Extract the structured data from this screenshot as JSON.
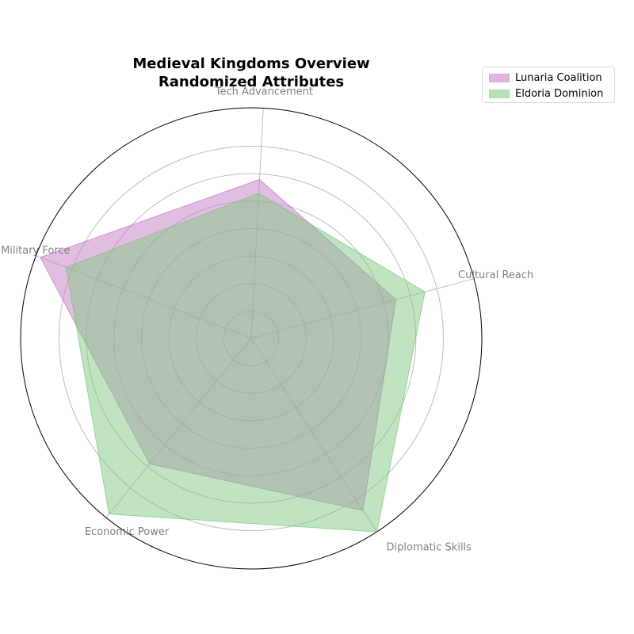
{
  "chart_data": {
    "type": "radar",
    "title_line1": "Medieval Kingdoms Overview",
    "title_line2": "Randomized Attributes",
    "axes": [
      "Cultural Reach",
      "Tech Advancement",
      "Military Force",
      "Economic Power",
      "Diplomatic Skills"
    ],
    "rmax": 10,
    "grid": true,
    "legend_position": "top-right",
    "series": [
      {
        "name": "Lunaria Coalition",
        "values": [
          6.5,
          6.9,
          9.8,
          7.0,
          8.9
        ],
        "fill": "#c27bc4",
        "stroke": "#b36bb8"
      },
      {
        "name": "Eldoria Dominion",
        "values": [
          7.8,
          6.3,
          8.6,
          9.8,
          10.0
        ],
        "fill": "#81c784",
        "stroke": "#6cbf6f"
      }
    ]
  }
}
